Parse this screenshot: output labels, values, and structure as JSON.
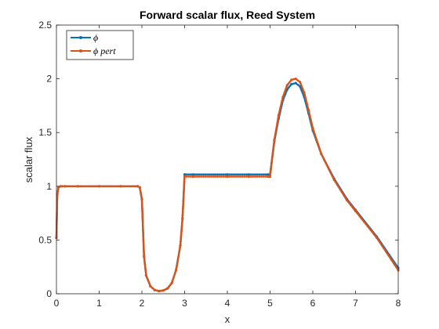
{
  "chart_data": {
    "type": "line",
    "title": "Forward scalar flux, Reed System",
    "xlabel": "x",
    "ylabel": "scalar flux",
    "xlim": [
      0,
      8
    ],
    "ylim": [
      0,
      2.5
    ],
    "xticks": [
      "0",
      "1",
      "2",
      "3",
      "4",
      "5",
      "6",
      "7",
      "8"
    ],
    "yticks": [
      "0",
      "0.5",
      "1",
      "1.5",
      "2",
      "2.5"
    ],
    "grid": false,
    "legend_position": "top-left",
    "series": [
      {
        "name": "ϕ",
        "color": "#0072BD",
        "x": [
          0,
          0.02,
          0.05,
          0.1,
          0.2,
          0.5,
          1.0,
          1.5,
          1.9,
          1.95,
          2.0,
          2.05,
          2.1,
          2.2,
          2.3,
          2.4,
          2.5,
          2.6,
          2.7,
          2.8,
          2.9,
          2.95,
          3.0,
          3.2,
          4.0,
          4.5,
          4.95,
          5.0,
          5.1,
          5.2,
          5.3,
          5.4,
          5.5,
          5.6,
          5.7,
          5.8,
          5.9,
          6.0,
          6.2,
          6.5,
          6.8,
          7.0,
          7.5,
          8.0
        ],
        "y": [
          0.52,
          0.93,
          0.99,
          1.0,
          1.0,
          1.0,
          1.0,
          1.0,
          1.0,
          0.99,
          0.88,
          0.35,
          0.17,
          0.07,
          0.035,
          0.025,
          0.03,
          0.05,
          0.1,
          0.22,
          0.45,
          0.7,
          1.11,
          1.11,
          1.11,
          1.11,
          1.11,
          1.11,
          1.42,
          1.63,
          1.8,
          1.9,
          1.95,
          1.96,
          1.93,
          1.83,
          1.68,
          1.52,
          1.3,
          1.07,
          0.88,
          0.78,
          0.53,
          0.24
        ]
      },
      {
        "name": "ϕ pert",
        "color": "#D95319",
        "x": [
          0,
          0.02,
          0.05,
          0.1,
          0.2,
          0.5,
          1.0,
          1.5,
          1.9,
          1.95,
          2.0,
          2.05,
          2.1,
          2.2,
          2.3,
          2.4,
          2.5,
          2.6,
          2.7,
          2.8,
          2.9,
          2.95,
          3.0,
          3.2,
          4.0,
          4.5,
          4.95,
          5.0,
          5.1,
          5.2,
          5.3,
          5.4,
          5.5,
          5.6,
          5.7,
          5.8,
          5.9,
          6.0,
          6.2,
          6.5,
          6.8,
          7.0,
          7.5,
          8.0
        ],
        "y": [
          0.52,
          0.93,
          0.99,
          1.0,
          1.0,
          1.0,
          1.0,
          1.0,
          1.0,
          0.99,
          0.88,
          0.35,
          0.17,
          0.07,
          0.035,
          0.025,
          0.03,
          0.05,
          0.1,
          0.22,
          0.45,
          0.7,
          1.09,
          1.09,
          1.09,
          1.09,
          1.09,
          1.09,
          1.43,
          1.66,
          1.83,
          1.94,
          1.99,
          2.0,
          1.97,
          1.87,
          1.71,
          1.54,
          1.3,
          1.06,
          0.87,
          0.77,
          0.52,
          0.22
        ]
      }
    ]
  }
}
